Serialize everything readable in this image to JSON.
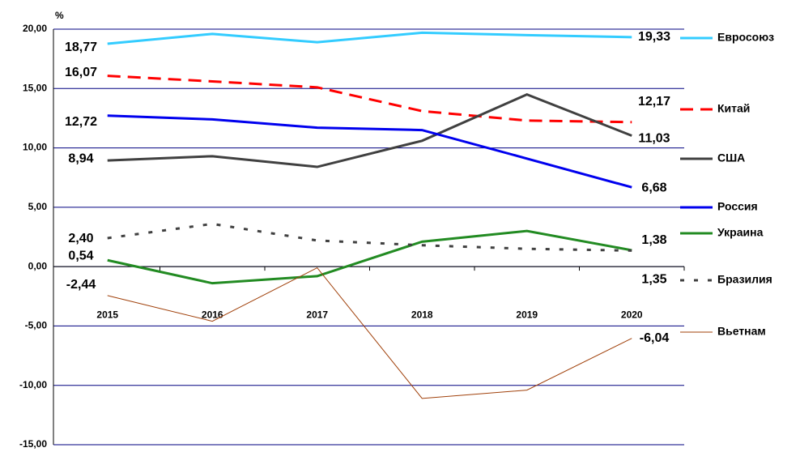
{
  "chart_data": {
    "type": "line",
    "y_label": "%",
    "categories": [
      "2015",
      "2016",
      "2017",
      "2018",
      "2019",
      "2020"
    ],
    "ylim": [
      -15,
      20
    ],
    "yticks": [
      {
        "value": -15,
        "label": "-15,00"
      },
      {
        "value": -10,
        "label": "-10,00"
      },
      {
        "value": -5,
        "label": "-5,00"
      },
      {
        "value": 0,
        "label": "0,00"
      },
      {
        "value": 5,
        "label": "5,00"
      },
      {
        "value": 10,
        "label": "10,00"
      },
      {
        "value": 15,
        "label": "15,00"
      },
      {
        "value": 20,
        "label": "20,00"
      }
    ],
    "grid": true,
    "legend": "right",
    "series": [
      {
        "name": "Евросоюз",
        "color": "#33ccff",
        "style": "solid",
        "width": 3,
        "values": [
          18.77,
          19.6,
          18.9,
          19.7,
          19.5,
          19.33
        ],
        "value_labels": [
          "18,77",
          null,
          null,
          null,
          null,
          "19,33"
        ]
      },
      {
        "name": "Китай",
        "color": "#ff0000",
        "style": "dashed",
        "width": 3,
        "values": [
          16.07,
          15.6,
          15.1,
          13.1,
          12.3,
          12.17
        ],
        "value_labels": [
          "16,07",
          null,
          null,
          null,
          null,
          "12,17"
        ]
      },
      {
        "name": "США",
        "color": "#404040",
        "style": "solid",
        "width": 3,
        "values": [
          8.94,
          9.3,
          8.4,
          10.6,
          14.5,
          11.03
        ],
        "value_labels": [
          "8,94",
          null,
          null,
          null,
          null,
          "11,03"
        ]
      },
      {
        "name": "Россия",
        "color": "#0000ee",
        "style": "solid",
        "width": 3,
        "values": [
          12.72,
          12.4,
          11.7,
          11.5,
          9.1,
          6.68
        ],
        "value_labels": [
          "12,72",
          null,
          null,
          null,
          null,
          "6,68"
        ]
      },
      {
        "name": "Украина",
        "color": "#228b22",
        "style": "solid",
        "width": 3,
        "values": [
          0.54,
          -1.4,
          -0.8,
          2.1,
          3.0,
          1.38
        ],
        "value_labels": [
          "0,54",
          null,
          null,
          null,
          null,
          "1,38"
        ]
      },
      {
        "name": "Бразилия",
        "color": "#404040",
        "style": "dotted",
        "width": 3,
        "values": [
          2.4,
          3.6,
          2.2,
          1.8,
          1.5,
          1.35
        ],
        "value_labels": [
          "2,40",
          null,
          null,
          null,
          null,
          "1,35"
        ]
      },
      {
        "name": "Вьетнам",
        "color": "#a0400a",
        "style": "solid",
        "width": 1,
        "values": [
          -2.44,
          -4.6,
          -0.1,
          -11.1,
          -10.4,
          -6.04
        ],
        "value_labels": [
          "-2,44",
          null,
          null,
          null,
          null,
          "-6,04"
        ]
      }
    ]
  }
}
